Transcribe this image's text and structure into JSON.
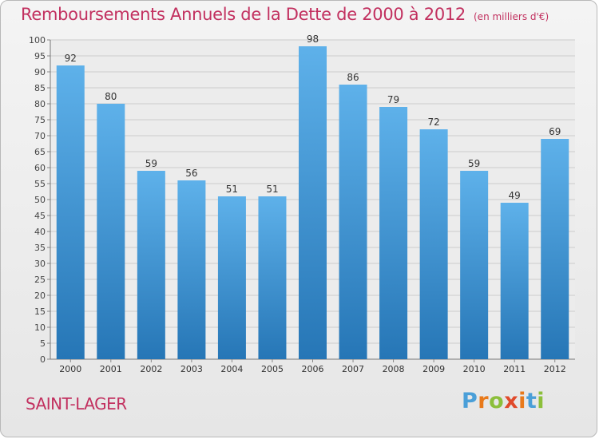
{
  "title": "Remboursements Annuels de la Dette de 2000 à 2012",
  "unit_note": "(en milliers d'€)",
  "commune": "SAINT-LAGER",
  "brand": {
    "letters": [
      "P",
      "r",
      "o",
      "x",
      "i",
      "t",
      "i"
    ],
    "colors": [
      "#4a9fd8",
      "#e8791a",
      "#8cbf3b",
      "#e04a2b",
      "#e8791a",
      "#4a9fd8",
      "#8cbf3b"
    ]
  },
  "colors": {
    "title": "#c2305f",
    "bar_top": "#5eb1ea",
    "bar_bottom": "#2676b6",
    "grid": "#cccccc"
  },
  "chart_data": {
    "type": "bar",
    "categories": [
      "2000",
      "2001",
      "2002",
      "2003",
      "2004",
      "2005",
      "2006",
      "2007",
      "2008",
      "2009",
      "2010",
      "2011",
      "2012"
    ],
    "values": [
      92,
      80,
      59,
      56,
      51,
      51,
      98,
      86,
      79,
      72,
      59,
      49,
      69
    ],
    "ylim": [
      0,
      100
    ],
    "ytick_step": 5,
    "grid": true,
    "data_labels": true
  }
}
